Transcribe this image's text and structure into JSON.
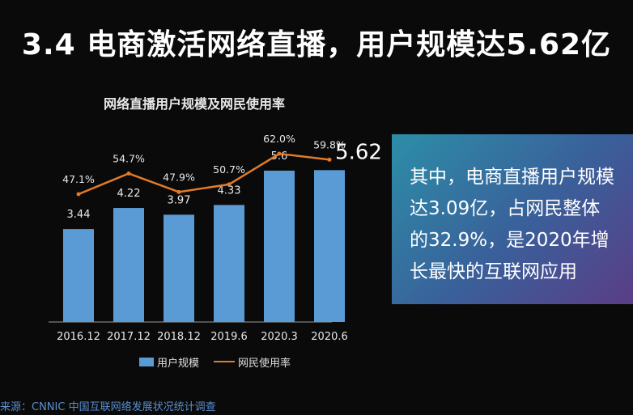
{
  "slide": {
    "title": "3.4  电商激活网络直播，用户规模达5.62亿",
    "source": "来源：CNNIC 中国互联网络发展状况统计调查"
  },
  "callout": {
    "lines": [
      "其中，电商直播用户规模",
      "达3.09亿，占网民整体",
      "的32.9%，是2020年增",
      "长最快的互联网应用"
    ]
  },
  "colors": {
    "bar": "#5b9bd5",
    "line": "#e07b2a",
    "axis": "#9a9a9a",
    "label": "#e8e8e8"
  },
  "chart_data": {
    "type": "bar+line",
    "title": "网络直播用户规模及网民使用率",
    "categories": [
      "2016.12",
      "2017.12",
      "2018.12",
      "2019.6",
      "2020.3",
      "2020.6"
    ],
    "series": [
      {
        "name": "用户规模",
        "type": "bar",
        "values": [
          3.44,
          4.22,
          3.97,
          4.33,
          5.6,
          5.62
        ],
        "labels": [
          "3.44",
          "4.22",
          "3.97",
          "4.33",
          "5.6",
          "5.62"
        ]
      },
      {
        "name": "网民使用率",
        "type": "line",
        "values": [
          47.1,
          54.7,
          47.9,
          50.7,
          62.0,
          59.8
        ],
        "labels": [
          "47.1%",
          "54.7%",
          "47.9%",
          "50.7%",
          "62.0%",
          "59.8%"
        ]
      }
    ],
    "legend": "bottom",
    "grid": false
  }
}
